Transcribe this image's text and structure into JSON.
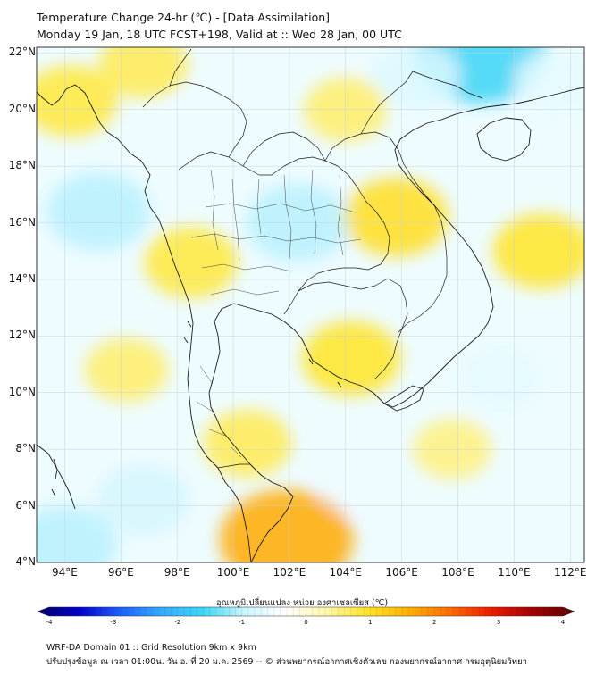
{
  "header": {
    "title_line1": "Temperature Change 24-hr (℃) - [Data Assimilation]",
    "title_line2": "Monday 19 Jan, 18 UTC FCST+198, Valid at :: Wed 28 Jan, 00 UTC"
  },
  "map": {
    "lat_labels": [
      "22°N",
      "20°N",
      "18°N",
      "16°N",
      "14°N",
      "12°N",
      "10°N",
      "8°N",
      "6°N",
      "4°N"
    ],
    "lon_labels": [
      "94°E",
      "96°E",
      "98°E",
      "100°E",
      "102°E",
      "104°E",
      "106°E",
      "108°E",
      "110°E",
      "112°E"
    ],
    "lat_range": [
      4,
      22.2
    ],
    "lon_range": [
      93,
      112.5
    ],
    "background_color": "#eefcff",
    "warm_regions": [
      {
        "lon": 101.9,
        "lat": 4.8,
        "value": 1.6
      },
      {
        "lon": 105.8,
        "lat": 16.2,
        "value": 1.0
      },
      {
        "lon": 111.0,
        "lat": 15.0,
        "value": 0.9
      },
      {
        "lon": 104.2,
        "lat": 11.2,
        "value": 0.9
      },
      {
        "lon": 98.5,
        "lat": 14.6,
        "value": 0.8
      },
      {
        "lon": 94.2,
        "lat": 20.3,
        "value": 0.8
      },
      {
        "lon": 96.8,
        "lat": 21.6,
        "value": 0.7
      },
      {
        "lon": 100.5,
        "lat": 8.2,
        "value": 0.7
      },
      {
        "lon": 96.2,
        "lat": 10.8,
        "value": 0.6
      },
      {
        "lon": 104.0,
        "lat": 20.0,
        "value": 0.6
      },
      {
        "lon": 107.8,
        "lat": 8.0,
        "value": 0.5
      }
    ],
    "cool_regions": [
      {
        "lon": 108.8,
        "lat": 22.0,
        "value": -1.6
      },
      {
        "lon": 102.3,
        "lat": 16.0,
        "value": -1.0
      },
      {
        "lon": 95.2,
        "lat": 16.4,
        "value": -1.0
      },
      {
        "lon": 106.5,
        "lat": 21.2,
        "value": -0.7
      },
      {
        "lon": 94.0,
        "lat": 4.6,
        "value": -1.0
      },
      {
        "lon": 96.8,
        "lat": 6.2,
        "value": -0.8
      },
      {
        "lon": 109.5,
        "lat": 10.5,
        "value": -0.6
      },
      {
        "lon": 111.5,
        "lat": 21.0,
        "value": -0.6
      },
      {
        "lon": 98.4,
        "lat": 19.0,
        "value": -0.5
      },
      {
        "lon": 104.5,
        "lat": 6.8,
        "value": -0.5
      }
    ]
  },
  "colorbar": {
    "title": "อุณหภูมิเปลี่ยนแปลง หน่วย องศาเซลเซียส (℃)",
    "min": -4,
    "max": 4,
    "ticks": [
      "-4",
      "-3",
      "-2",
      "-1",
      "0",
      "1",
      "2",
      "3",
      "4"
    ],
    "colors": [
      "#000066",
      "#0000cc",
      "#1f5fff",
      "#35aaff",
      "#3cd7f5",
      "#c8f4ff",
      "#ffffff",
      "#fff6a8",
      "#ffe320",
      "#ffb000",
      "#ff6a00",
      "#ee1a00",
      "#a30000",
      "#5a0000"
    ]
  },
  "footer": {
    "line1": "WRF-DA Domain 01 :: Grid Resolution 9km x 9km",
    "line2": "ปรับปรุงข้อมูล ณ เวลา 01:00น. วัน อ. ที่ 20 ม.ค. 2569 -- © ส่วนพยากรณ์อากาศเชิงตัวเลข กองพยากรณ์อากาศ กรมอุตุนิยมวิทยา"
  }
}
